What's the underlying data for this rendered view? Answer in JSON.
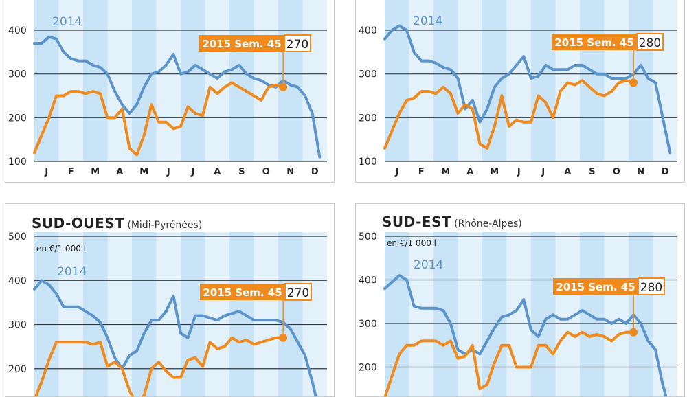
{
  "common": {
    "months": [
      "J",
      "F",
      "M",
      "A",
      "M",
      "J",
      "J",
      "A",
      "S",
      "O",
      "N",
      "D"
    ],
    "label_2014": "2014",
    "label_2015": "2015 Sem. 45",
    "colors": {
      "s2014": "#5b93cb",
      "s2015": "#f08a1c",
      "band": "#c8e4f6",
      "grid": "#2d3a45"
    }
  },
  "panels": [
    {
      "title": "",
      "subtitle": "",
      "unit": "",
      "value_2015": "270"
    },
    {
      "title": "",
      "subtitle": "",
      "unit": "",
      "value_2015": "280"
    },
    {
      "title": "SUD-OUEST",
      "subtitle": "(Midi-Pyrénées)",
      "unit": "en €/1 000 l",
      "value_2015": "270"
    },
    {
      "title": "SUD-EST",
      "subtitle": "(Rhône-Alpes)",
      "unit": "en €/1 000 l",
      "value_2015": "280"
    }
  ],
  "chart_data": [
    {
      "type": "line",
      "ylim": [
        100,
        400
      ],
      "yticks": [
        100,
        200,
        300,
        400
      ],
      "xlim": [
        0,
        12
      ],
      "series": [
        {
          "name": "2014",
          "x": [
            0.0,
            0.3,
            0.6,
            0.9,
            1.2,
            1.5,
            1.8,
            2.1,
            2.4,
            2.7,
            3.0,
            3.3,
            3.6,
            3.9,
            4.2,
            4.5,
            4.8,
            5.1,
            5.4,
            5.7,
            6.0,
            6.3,
            6.6,
            6.9,
            7.2,
            7.5,
            7.8,
            8.1,
            8.4,
            8.7,
            9.0,
            9.3,
            9.6,
            9.9,
            10.2,
            10.5,
            10.8,
            11.1,
            11.4,
            11.7
          ],
          "y": [
            370,
            370,
            385,
            380,
            350,
            335,
            330,
            330,
            320,
            315,
            300,
            260,
            230,
            210,
            230,
            270,
            300,
            305,
            320,
            345,
            300,
            305,
            320,
            310,
            300,
            290,
            305,
            310,
            320,
            300,
            290,
            285,
            275,
            270,
            285,
            275,
            270,
            250,
            210,
            110
          ]
        },
        {
          "name": "2015 Sem. 45",
          "x": [
            0.0,
            0.3,
            0.6,
            0.9,
            1.2,
            1.5,
            1.8,
            2.1,
            2.4,
            2.7,
            3.0,
            3.3,
            3.6,
            3.9,
            4.2,
            4.5,
            4.8,
            5.1,
            5.4,
            5.7,
            6.0,
            6.3,
            6.6,
            6.9,
            7.2,
            7.5,
            7.8,
            8.1,
            8.4,
            8.7,
            9.0,
            9.3,
            9.6,
            9.9,
            10.2
          ],
          "y": [
            120,
            160,
            200,
            250,
            250,
            260,
            260,
            255,
            260,
            255,
            200,
            200,
            220,
            130,
            115,
            160,
            230,
            190,
            190,
            175,
            180,
            225,
            210,
            205,
            270,
            255,
            270,
            280,
            270,
            260,
            250,
            240,
            270,
            275,
            270
          ]
        }
      ]
    },
    {
      "type": "line",
      "ylim": [
        100,
        400
      ],
      "yticks": [
        100,
        200,
        300,
        400
      ],
      "xlim": [
        0,
        12
      ],
      "series": [
        {
          "name": "2014",
          "x": [
            0.0,
            0.3,
            0.6,
            0.9,
            1.2,
            1.5,
            1.8,
            2.1,
            2.4,
            2.7,
            3.0,
            3.3,
            3.6,
            3.9,
            4.2,
            4.5,
            4.8,
            5.1,
            5.4,
            5.7,
            6.0,
            6.3,
            6.6,
            6.9,
            7.2,
            7.5,
            7.8,
            8.1,
            8.4,
            8.7,
            9.0,
            9.3,
            9.6,
            9.9,
            10.2,
            10.5,
            10.8,
            11.1,
            11.4,
            11.7
          ],
          "y": [
            380,
            400,
            410,
            400,
            350,
            330,
            330,
            325,
            315,
            310,
            290,
            220,
            240,
            190,
            220,
            270,
            290,
            300,
            320,
            340,
            290,
            295,
            320,
            310,
            310,
            310,
            320,
            320,
            310,
            300,
            300,
            290,
            290,
            290,
            300,
            320,
            290,
            280,
            200,
            120
          ]
        },
        {
          "name": "2015 Sem. 45",
          "x": [
            0.0,
            0.3,
            0.6,
            0.9,
            1.2,
            1.5,
            1.8,
            2.1,
            2.4,
            2.7,
            3.0,
            3.3,
            3.6,
            3.9,
            4.2,
            4.5,
            4.8,
            5.1,
            5.4,
            5.7,
            6.0,
            6.3,
            6.6,
            6.9,
            7.2,
            7.5,
            7.8,
            8.1,
            8.4,
            8.7,
            9.0,
            9.3,
            9.6,
            9.9,
            10.2
          ],
          "y": [
            130,
            170,
            210,
            240,
            245,
            260,
            260,
            255,
            270,
            255,
            210,
            230,
            220,
            140,
            130,
            180,
            250,
            180,
            195,
            190,
            190,
            250,
            235,
            200,
            260,
            280,
            275,
            285,
            270,
            255,
            250,
            260,
            280,
            285,
            280
          ]
        }
      ]
    },
    {
      "type": "line",
      "ylim": [
        100,
        500
      ],
      "yticks": [
        200,
        300,
        400,
        500
      ],
      "xlim": [
        0,
        12
      ],
      "series": [
        {
          "name": "2014",
          "x": [
            0.0,
            0.3,
            0.6,
            0.9,
            1.2,
            1.5,
            1.8,
            2.1,
            2.4,
            2.7,
            3.0,
            3.3,
            3.6,
            3.9,
            4.2,
            4.5,
            4.8,
            5.1,
            5.4,
            5.7,
            6.0,
            6.3,
            6.6,
            6.9,
            7.2,
            7.5,
            7.8,
            8.1,
            8.4,
            8.7,
            9.0,
            9.3,
            9.6,
            9.9,
            10.2,
            10.5,
            10.8,
            11.1,
            11.4,
            11.7
          ],
          "y": [
            380,
            400,
            390,
            370,
            340,
            340,
            340,
            330,
            320,
            305,
            270,
            225,
            200,
            230,
            240,
            280,
            310,
            310,
            330,
            365,
            280,
            270,
            320,
            320,
            315,
            310,
            320,
            325,
            330,
            320,
            310,
            310,
            310,
            310,
            305,
            290,
            260,
            230,
            170,
            100
          ]
        },
        {
          "name": "2015 Sem. 45",
          "x": [
            0.0,
            0.3,
            0.6,
            0.9,
            1.2,
            1.5,
            1.8,
            2.1,
            2.4,
            2.7,
            3.0,
            3.3,
            3.6,
            3.9,
            4.2,
            4.5,
            4.8,
            5.1,
            5.4,
            5.7,
            6.0,
            6.3,
            6.6,
            6.9,
            7.2,
            7.5,
            7.8,
            8.1,
            8.4,
            8.7,
            9.0,
            9.3,
            9.6,
            9.9,
            10.2
          ],
          "y": [
            130,
            170,
            220,
            260,
            260,
            260,
            260,
            260,
            255,
            260,
            205,
            215,
            200,
            150,
            120,
            140,
            200,
            215,
            195,
            180,
            180,
            220,
            225,
            205,
            260,
            245,
            250,
            270,
            260,
            265,
            255,
            260,
            265,
            270,
            270
          ]
        }
      ]
    },
    {
      "type": "line",
      "ylim": [
        100,
        500
      ],
      "yticks": [
        200,
        300,
        400,
        500
      ],
      "xlim": [
        0,
        12
      ],
      "series": [
        {
          "name": "2014",
          "x": [
            0.0,
            0.3,
            0.6,
            0.9,
            1.2,
            1.5,
            1.8,
            2.1,
            2.4,
            2.7,
            3.0,
            3.3,
            3.6,
            3.9,
            4.2,
            4.5,
            4.8,
            5.1,
            5.4,
            5.7,
            6.0,
            6.3,
            6.6,
            6.9,
            7.2,
            7.5,
            7.8,
            8.1,
            8.4,
            8.7,
            9.0,
            9.3,
            9.6,
            9.9,
            10.2,
            10.5,
            10.8,
            11.1,
            11.4,
            11.7
          ],
          "y": [
            380,
            395,
            410,
            400,
            340,
            335,
            335,
            335,
            330,
            300,
            240,
            230,
            240,
            230,
            260,
            290,
            315,
            320,
            330,
            355,
            285,
            270,
            310,
            320,
            310,
            310,
            320,
            330,
            320,
            310,
            310,
            300,
            310,
            300,
            320,
            300,
            260,
            240,
            160,
            100
          ]
        },
        {
          "name": "2015 Sem. 45",
          "x": [
            0.0,
            0.3,
            0.6,
            0.9,
            1.2,
            1.5,
            1.8,
            2.1,
            2.4,
            2.7,
            3.0,
            3.3,
            3.6,
            3.9,
            4.2,
            4.5,
            4.8,
            5.1,
            5.4,
            5.7,
            6.0,
            6.3,
            6.6,
            6.9,
            7.2,
            7.5,
            7.8,
            8.1,
            8.4,
            8.7,
            9.0,
            9.3,
            9.6,
            9.9,
            10.2
          ],
          "y": [
            130,
            180,
            230,
            250,
            250,
            260,
            260,
            260,
            250,
            260,
            220,
            225,
            250,
            150,
            160,
            210,
            250,
            250,
            200,
            200,
            200,
            250,
            250,
            230,
            260,
            280,
            270,
            280,
            270,
            275,
            270,
            260,
            275,
            280,
            280
          ]
        }
      ]
    }
  ]
}
